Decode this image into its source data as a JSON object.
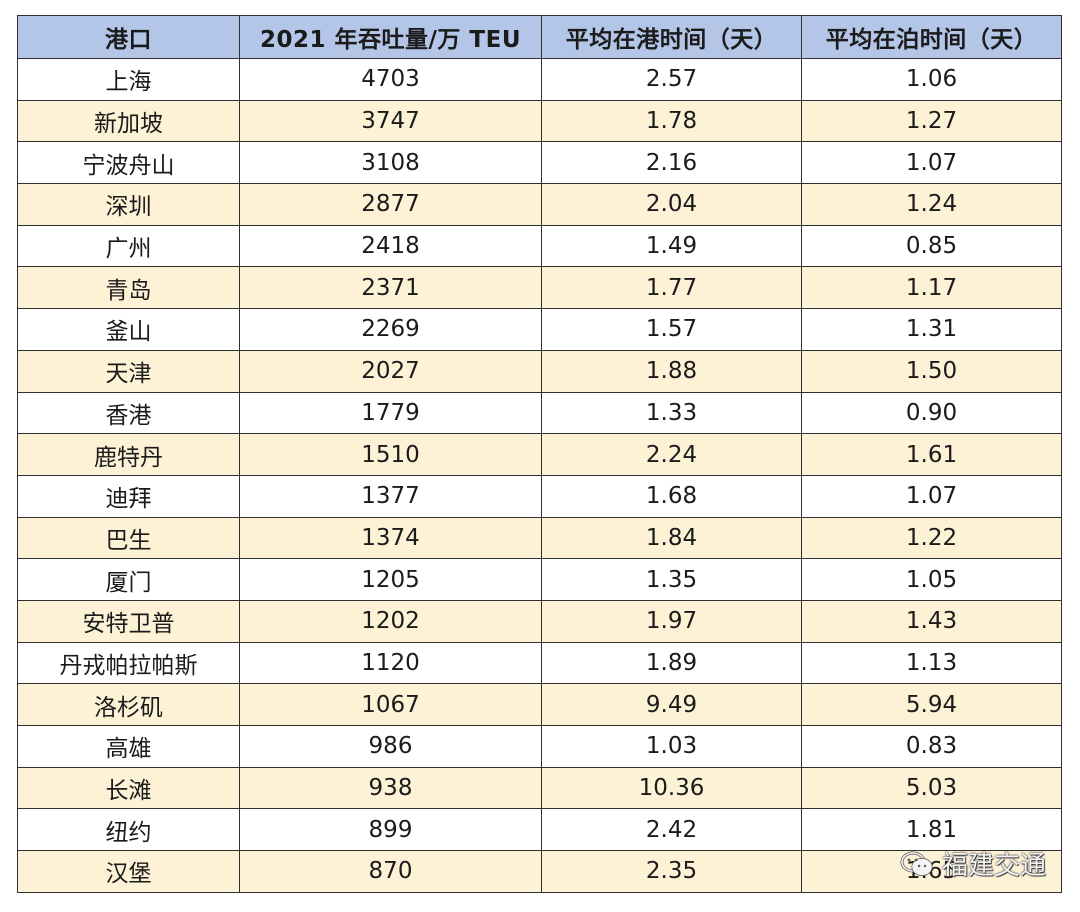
{
  "table": {
    "headers": [
      "港口",
      "2021 年吞吐量/万 TEU",
      "平均在港时间（天）",
      "平均在泊时间（天）"
    ],
    "rows": [
      [
        "上海",
        "4703",
        "2.57",
        "1.06"
      ],
      [
        "新加坡",
        "3747",
        "1.78",
        "1.27"
      ],
      [
        "宁波舟山",
        "3108",
        "2.16",
        "1.07"
      ],
      [
        "深圳",
        "2877",
        "2.04",
        "1.24"
      ],
      [
        "广州",
        "2418",
        "1.49",
        "0.85"
      ],
      [
        "青岛",
        "2371",
        "1.77",
        "1.17"
      ],
      [
        "釜山",
        "2269",
        "1.57",
        "1.31"
      ],
      [
        "天津",
        "2027",
        "1.88",
        "1.50"
      ],
      [
        "香港",
        "1779",
        "1.33",
        "0.90"
      ],
      [
        "鹿特丹",
        "1510",
        "2.24",
        "1.61"
      ],
      [
        "迪拜",
        "1377",
        "1.68",
        "1.07"
      ],
      [
        "巴生",
        "1374",
        "1.84",
        "1.22"
      ],
      [
        "厦门",
        "1205",
        "1.35",
        "1.05"
      ],
      [
        "安特卫普",
        "1202",
        "1.97",
        "1.43"
      ],
      [
        "丹戎帕拉帕斯",
        "1120",
        "1.89",
        "1.13"
      ],
      [
        "洛杉矶",
        "1067",
        "9.49",
        "5.94"
      ],
      [
        "高雄",
        "986",
        "1.03",
        "0.83"
      ],
      [
        "长滩",
        "938",
        "10.36",
        "5.03"
      ],
      [
        "纽约",
        "899",
        "2.42",
        "1.81"
      ],
      [
        "汉堡",
        "870",
        "2.35",
        "1.65"
      ]
    ]
  },
  "watermark": {
    "text": "福建交通",
    "icon": "wechat-icon"
  },
  "colors": {
    "header_bg": "#b4c6e7",
    "row_alt_bg": "#fdf1d6",
    "row_bg": "#ffffff"
  }
}
